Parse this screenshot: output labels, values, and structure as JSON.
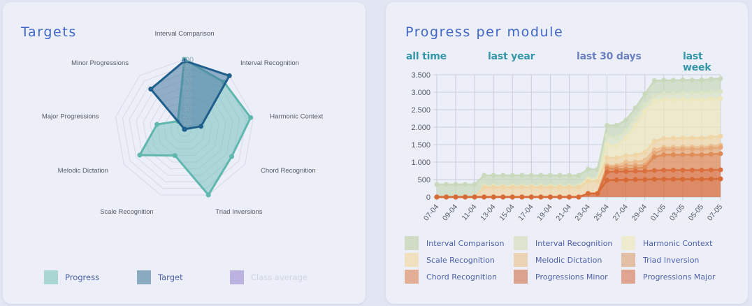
{
  "targets_card": {
    "title": "Targets",
    "legend": [
      {
        "label": "Progress",
        "color": "#a9d6d3",
        "disabled": false
      },
      {
        "label": "Target",
        "color": "#89aac0",
        "disabled": false
      },
      {
        "label": "Class average",
        "color": "#bcb2e0",
        "disabled": true
      }
    ]
  },
  "progress_card": {
    "title": "Progress per module",
    "filters": [
      {
        "label": "all time",
        "active": false
      },
      {
        "label": "last year",
        "active": false
      },
      {
        "label": "last 30 days",
        "active": true
      },
      {
        "label": "last week",
        "active": false
      }
    ]
  },
  "chart_data": [
    {
      "type": "radar",
      "title": "Targets",
      "axes": [
        "Interval Comparison",
        "Interval Recognition",
        "Harmonic Context",
        "Chord Recognition",
        "Triad Inversions",
        "Scale Recognition",
        "Melodic Dictation",
        "Major Progressions",
        "Minor Progressions"
      ],
      "rlim": [
        0,
        100
      ],
      "ticks": [
        10,
        20,
        30,
        40,
        50,
        60,
        70,
        80,
        90,
        100
      ],
      "series": [
        {
          "name": "Progress",
          "values": [
            100,
            88,
            96,
            78,
            100,
            40,
            74,
            40,
            15
          ],
          "fill": "rgba(110,190,185,0.5)",
          "stroke": "#5fb7ad"
        },
        {
          "name": "Target",
          "values": [
            98,
            100,
            24,
            0,
            0,
            0,
            0,
            0,
            75
          ],
          "fill": "rgba(70,120,160,0.55)",
          "stroke": "#1e5f8c"
        },
        {
          "name": "Class average",
          "values": [],
          "hidden": true
        }
      ],
      "legend_position": "bottom"
    },
    {
      "type": "area",
      "stacked": true,
      "title": "Progress per module",
      "x": [
        "07-04",
        "08-04",
        "09-04",
        "10-04",
        "11-04",
        "12-04",
        "13-04",
        "14-04",
        "15-04",
        "16-04",
        "17-04",
        "18-04",
        "19-04",
        "20-04",
        "21-04",
        "22-04",
        "23-04",
        "24-04",
        "25-04",
        "26-04",
        "27-04",
        "28-04",
        "29-04",
        "30-04",
        "01-05",
        "02-05",
        "03-05",
        "04-05",
        "05-05",
        "06-05",
        "07-05"
      ],
      "xticks": [
        "07-04",
        "09-04",
        "11-04",
        "13-04",
        "15-04",
        "17-04",
        "19-04",
        "21-04",
        "23-04",
        "25-04",
        "27-04",
        "29-04",
        "01-05",
        "03-05",
        "05-05",
        "07-05"
      ],
      "yticks": [
        "0",
        "500",
        "1.000",
        "1.500",
        "2.000",
        "2.500",
        "3.000",
        "3.500"
      ],
      "ylim": [
        0,
        3500
      ],
      "grid": true,
      "legend_position": "bottom",
      "series": [
        {
          "name": "Progressions Major",
          "color": "#d86a35",
          "values": [
            0,
            0,
            0,
            0,
            0,
            0,
            0,
            0,
            0,
            0,
            0,
            0,
            0,
            0,
            0,
            0,
            100,
            100,
            480,
            490,
            490,
            500,
            500,
            510,
            510,
            510,
            510,
            510,
            510,
            515,
            520
          ]
        },
        {
          "name": "Progressions Minor",
          "color": "#db6f3e",
          "values": [
            0,
            0,
            0,
            0,
            0,
            0,
            0,
            0,
            0,
            0,
            0,
            0,
            0,
            0,
            0,
            0,
            0,
            0,
            240,
            240,
            240,
            240,
            240,
            250,
            260,
            260,
            260,
            260,
            260,
            260,
            260
          ]
        },
        {
          "name": "Chord Recognition",
          "color": "#e08c57",
          "values": [
            0,
            0,
            0,
            0,
            0,
            0,
            0,
            0,
            0,
            0,
            0,
            0,
            0,
            0,
            0,
            0,
            0,
            0,
            100,
            70,
            70,
            80,
            110,
            390,
            440,
            440,
            440,
            440,
            440,
            450,
            460
          ]
        },
        {
          "name": "Triad Inversion",
          "color": "#e6a878",
          "values": [
            0,
            0,
            0,
            0,
            0,
            0,
            0,
            0,
            0,
            0,
            0,
            0,
            0,
            0,
            0,
            0,
            0,
            0,
            50,
            60,
            100,
            80,
            70,
            100,
            150,
            150,
            160,
            160,
            160,
            170,
            180
          ]
        },
        {
          "name": "Melodic Dictation",
          "color": "#ebbf8f",
          "values": [
            0,
            0,
            0,
            0,
            0,
            0,
            0,
            0,
            0,
            0,
            0,
            0,
            0,
            0,
            0,
            0,
            0,
            0,
            30,
            40,
            100,
            100,
            130,
            100,
            60,
            60,
            60,
            60,
            60,
            60,
            60
          ]
        },
        {
          "name": "Scale Recognition",
          "color": "#f0d6a6",
          "values": [
            0,
            0,
            0,
            0,
            0,
            280,
            280,
            280,
            280,
            280,
            280,
            280,
            280,
            280,
            280,
            280,
            350,
            350,
            220,
            220,
            180,
            200,
            230,
            250,
            260,
            260,
            260,
            260,
            260,
            260,
            260
          ]
        },
        {
          "name": "Harmonic Context",
          "color": "#ece7bd",
          "values": [
            0,
            0,
            0,
            0,
            0,
            20,
            20,
            20,
            20,
            20,
            20,
            20,
            20,
            20,
            20,
            20,
            50,
            50,
            380,
            330,
            520,
            850,
            1170,
            1150,
            1110,
            1110,
            1100,
            1100,
            1090,
            1090,
            1080
          ]
        },
        {
          "name": "Interval Recognition",
          "color": "#dbe4c6",
          "values": [
            0,
            0,
            0,
            0,
            0,
            20,
            20,
            20,
            20,
            20,
            20,
            20,
            20,
            20,
            20,
            20,
            50,
            50,
            250,
            250,
            200,
            200,
            200,
            150,
            170,
            180,
            190,
            190,
            200,
            200,
            200
          ]
        },
        {
          "name": "Interval Comparison",
          "color": "#c9d9bc",
          "values": [
            360,
            360,
            360,
            360,
            360,
            300,
            300,
            300,
            300,
            300,
            300,
            300,
            300,
            300,
            300,
            300,
            250,
            240,
            300,
            350,
            300,
            300,
            300,
            430,
            380,
            370,
            370,
            370,
            370,
            370,
            370
          ]
        }
      ]
    }
  ],
  "progress_legend": [
    {
      "label": "Interval Comparison",
      "color": "#d0dcc6"
    },
    {
      "label": "Interval Recognition",
      "color": "#dde5d0"
    },
    {
      "label": "Harmonic Context",
      "color": "#eeebcf"
    },
    {
      "label": "Scale Recognition",
      "color": "#f0e0c0"
    },
    {
      "label": "Melodic Dictation",
      "color": "#ecd3b6"
    },
    {
      "label": "Triad Inversion",
      "color": "#e3bfa6"
    },
    {
      "label": "Chord Recognition",
      "color": "#e2ae95"
    },
    {
      "label": "Progressions Minor",
      "color": "#dba28f"
    },
    {
      "label": "Progressions Major",
      "color": "#e0a590"
    }
  ]
}
